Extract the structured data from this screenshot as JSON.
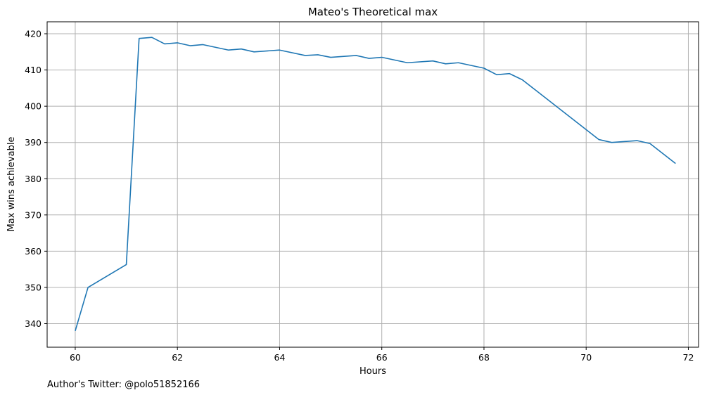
{
  "chart_data": {
    "type": "line",
    "title": "Mateo's Theoretical max",
    "xlabel": "Hours",
    "ylabel": "Max wins achievable",
    "xlim": [
      59.45,
      72.2
    ],
    "ylim": [
      333.5,
      423.3
    ],
    "xticks": [
      60,
      62,
      64,
      66,
      68,
      70,
      72
    ],
    "yticks": [
      340,
      350,
      360,
      370,
      380,
      390,
      400,
      410,
      420
    ],
    "grid": true,
    "series": [
      {
        "color": "#1f77b4",
        "points": [
          [
            60.0,
            338
          ],
          [
            60.25,
            350
          ],
          [
            61.0,
            356.3
          ],
          [
            61.25,
            418.7
          ],
          [
            61.5,
            419
          ],
          [
            61.75,
            417.2
          ],
          [
            62.0,
            417.5
          ],
          [
            62.25,
            416.7
          ],
          [
            62.5,
            417
          ],
          [
            63.0,
            415.5
          ],
          [
            63.25,
            415.8
          ],
          [
            63.5,
            415
          ],
          [
            64.0,
            415.5
          ],
          [
            64.5,
            414
          ],
          [
            64.75,
            414.2
          ],
          [
            65.0,
            413.5
          ],
          [
            65.5,
            414
          ],
          [
            65.75,
            413.2
          ],
          [
            66.0,
            413.5
          ],
          [
            66.5,
            412
          ],
          [
            67.0,
            412.5
          ],
          [
            67.25,
            411.7
          ],
          [
            67.5,
            412
          ],
          [
            68.0,
            410.5
          ],
          [
            68.25,
            408.7
          ],
          [
            68.5,
            409
          ],
          [
            68.75,
            407.3
          ],
          [
            70.25,
            390.8
          ],
          [
            70.5,
            390
          ],
          [
            71.0,
            390.5
          ],
          [
            71.25,
            389.7
          ],
          [
            71.75,
            384.2
          ]
        ]
      }
    ]
  },
  "footnote": "Author's Twitter: @polo51852166"
}
